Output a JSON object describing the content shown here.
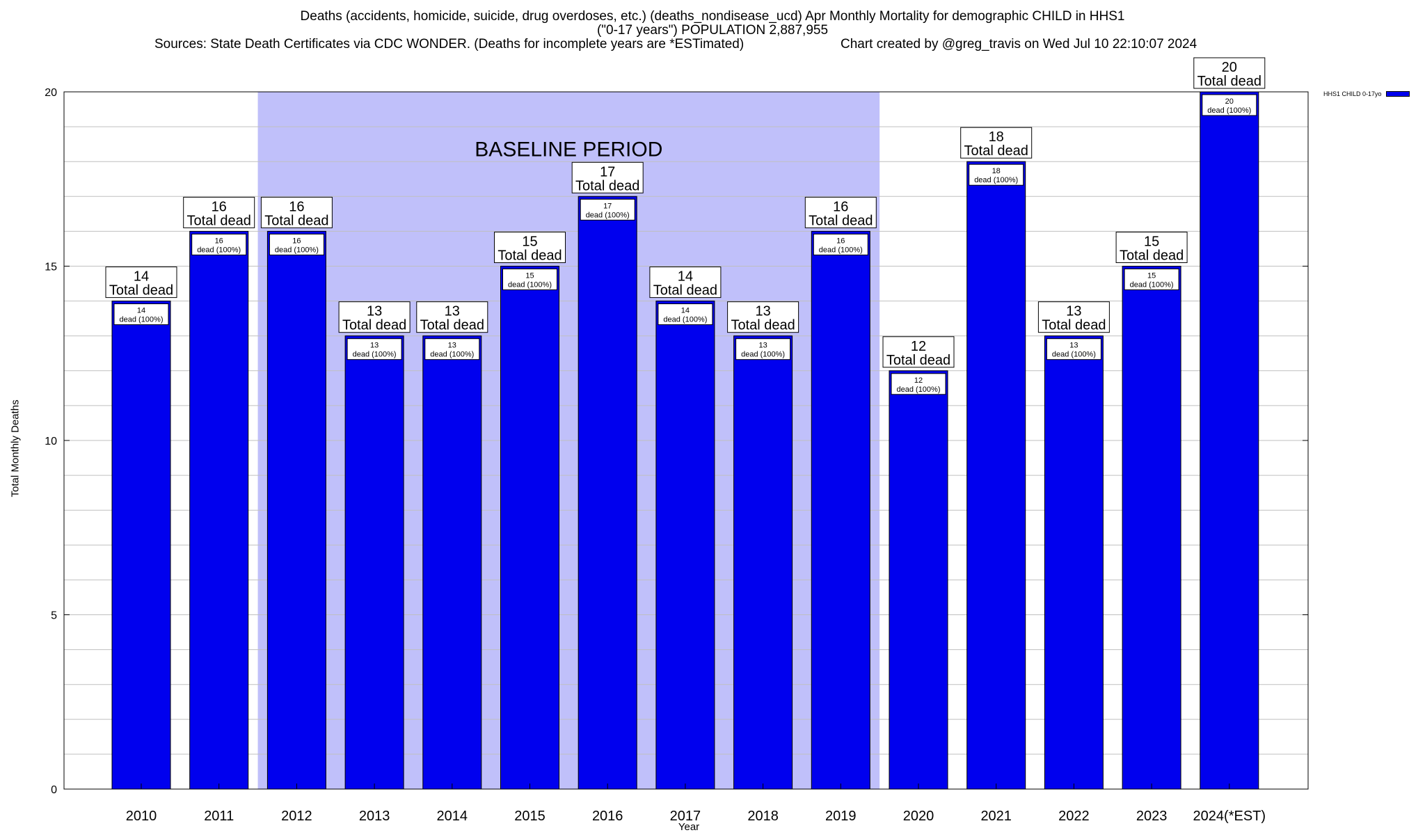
{
  "chart_data": {
    "type": "bar",
    "title": "Deaths (accidents, homicide, suicide, drug overdoses, etc.) (deaths_nondisease_ucd) Apr Monthly Mortality for demographic CHILD in HHS1",
    "subtitle": "(\"0-17 years\") POPULATION 2,887,955",
    "sources": "Sources: State Death Certificates via CDC WONDER. (Deaths for incomplete years are *ESTimated)",
    "credit": "Chart created by @greg_travis on Wed Jul 10 22:10:07 2024",
    "xlabel": "Year",
    "ylabel": "Total Monthly Deaths",
    "ylim": [
      0,
      20
    ],
    "yticks": [
      0,
      5,
      10,
      15,
      20
    ],
    "grid": true,
    "legend_position": "top-right",
    "baseline_label": "BASELINE PERIOD",
    "baseline_range": [
      "2012",
      "2019"
    ],
    "total_label": "Total dead",
    "inner_label": "dead (100%)",
    "categories": [
      "2010",
      "2011",
      "2012",
      "2013",
      "2014",
      "2015",
      "2016",
      "2017",
      "2018",
      "2019",
      "2020",
      "2021",
      "2022",
      "2023",
      "2024(*EST)"
    ],
    "series": [
      {
        "name": "HHS1 CHILD 0-17yo",
        "color": "#0000ee",
        "values": [
          14,
          16,
          16,
          13,
          13,
          15,
          17,
          14,
          13,
          16,
          12,
          18,
          13,
          15,
          20
        ]
      }
    ],
    "colors": {
      "bar": "#0000ee",
      "baseline": "#c0c0fa",
      "grid": "#bfbfbf"
    }
  }
}
